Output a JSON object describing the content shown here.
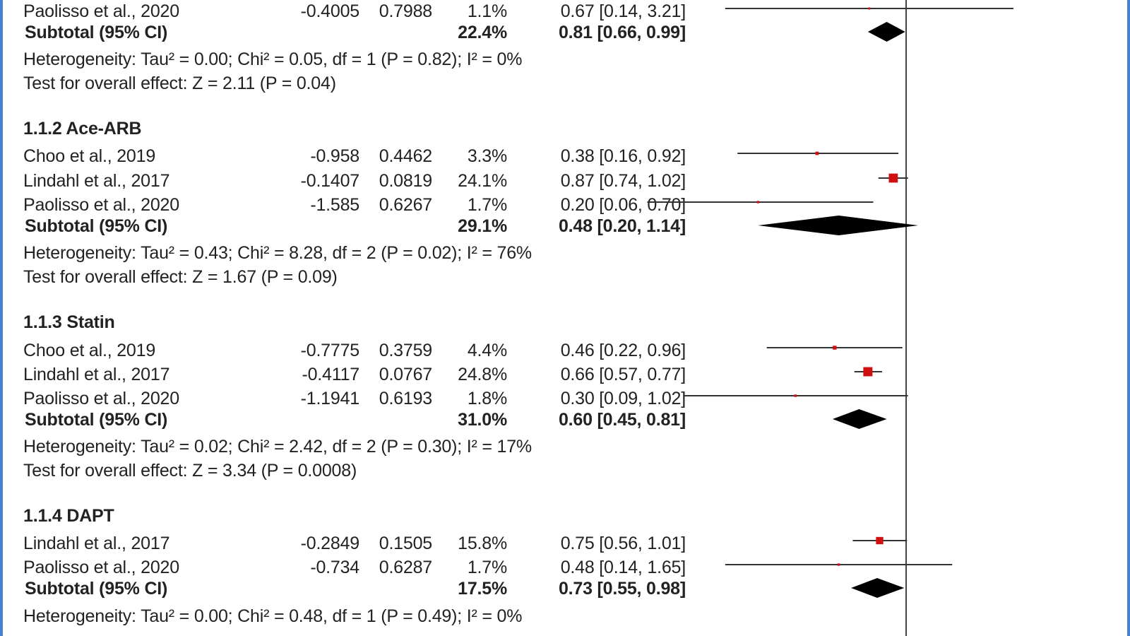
{
  "chart_data": {
    "type": "forest",
    "x_scale": "log",
    "x_reference": 1,
    "columns": [
      "estimate",
      "se",
      "weight",
      "ci_text"
    ],
    "rows": [
      {
        "kind": "study",
        "label": "Paolisso et al., 2020",
        "est": "-0.4005",
        "se": "0.7988",
        "weight": "1.1%",
        "ci_text": "0.67 [0.14, 3.21]",
        "or": 0.67,
        "lo": 0.14,
        "hi": 3.21,
        "w": 1.1
      },
      {
        "kind": "subtotal",
        "label": "Subtotal (95% CI)",
        "weight": "22.4%",
        "ci_text": "0.81 [0.66, 0.99]",
        "or": 0.81,
        "lo": 0.66,
        "hi": 0.99
      },
      {
        "kind": "stat",
        "text": "Heterogeneity: Tau² = 0.00; Chi² = 0.05, df = 1 (P = 0.82); I² = 0%"
      },
      {
        "kind": "stat",
        "text": "Test for overall effect: Z = 2.11 (P = 0.04)"
      },
      {
        "kind": "group",
        "text": "1.1.2 Ace-ARB"
      },
      {
        "kind": "study",
        "label": "Choo et al., 2019",
        "est": "-0.958",
        "se": "0.4462",
        "weight": "3.3%",
        "ci_text": "0.38 [0.16, 0.92]",
        "or": 0.38,
        "lo": 0.16,
        "hi": 0.92,
        "w": 3.3
      },
      {
        "kind": "study",
        "label": "Lindahl et al., 2017",
        "est": "-0.1407",
        "se": "0.0819",
        "weight": "24.1%",
        "ci_text": "0.87 [0.74, 1.02]",
        "or": 0.87,
        "lo": 0.74,
        "hi": 1.02,
        "w": 24.1
      },
      {
        "kind": "study",
        "label": "Paolisso et al., 2020",
        "est": "-1.585",
        "se": "0.6267",
        "weight": "1.7%",
        "ci_text": "0.20 [0.06, 0.70]",
        "or": 0.2,
        "lo": 0.06,
        "hi": 0.7,
        "w": 1.7
      },
      {
        "kind": "subtotal",
        "label": "Subtotal (95% CI)",
        "weight": "29.1%",
        "ci_text": "0.48 [0.20, 1.14]",
        "or": 0.48,
        "lo": 0.2,
        "hi": 1.14
      },
      {
        "kind": "stat",
        "text": "Heterogeneity: Tau² = 0.43; Chi² = 8.28, df = 2 (P = 0.02); I² = 76%"
      },
      {
        "kind": "stat",
        "text": "Test for overall effect: Z = 1.67 (P = 0.09)"
      },
      {
        "kind": "group",
        "text": "1.1.3 Statin"
      },
      {
        "kind": "study",
        "label": "Choo et al., 2019",
        "est": "-0.7775",
        "se": "0.3759",
        "weight": "4.4%",
        "ci_text": "0.46 [0.22, 0.96]",
        "or": 0.46,
        "lo": 0.22,
        "hi": 0.96,
        "w": 4.4
      },
      {
        "kind": "study",
        "label": "Lindahl et al., 2017",
        "est": "-0.4117",
        "se": "0.0767",
        "weight": "24.8%",
        "ci_text": "0.66 [0.57, 0.77]",
        "or": 0.66,
        "lo": 0.57,
        "hi": 0.77,
        "w": 24.8
      },
      {
        "kind": "study",
        "label": "Paolisso et al., 2020",
        "est": "-1.1941",
        "se": "0.6193",
        "weight": "1.8%",
        "ci_text": "0.30 [0.09, 1.02]",
        "or": 0.3,
        "lo": 0.09,
        "hi": 1.02,
        "w": 1.8
      },
      {
        "kind": "subtotal",
        "label": "Subtotal (95% CI)",
        "weight": "31.0%",
        "ci_text": "0.60 [0.45, 0.81]",
        "or": 0.6,
        "lo": 0.45,
        "hi": 0.81
      },
      {
        "kind": "stat",
        "text": "Heterogeneity: Tau² = 0.02; Chi² = 2.42, df = 2 (P = 0.30); I² = 17%"
      },
      {
        "kind": "stat",
        "text": "Test for overall effect: Z = 3.34 (P = 0.0008)"
      },
      {
        "kind": "group",
        "text": "1.1.4 DAPT"
      },
      {
        "kind": "study",
        "label": "Lindahl et al., 2017",
        "est": "-0.2849",
        "se": "0.1505",
        "weight": "15.8%",
        "ci_text": "0.75 [0.56, 1.01]",
        "or": 0.75,
        "lo": 0.56,
        "hi": 1.01,
        "w": 15.8
      },
      {
        "kind": "study",
        "label": "Paolisso et al., 2020",
        "est": "-0.734",
        "se": "0.6287",
        "weight": "1.7%",
        "ci_text": "0.48 [0.14, 1.65]",
        "or": 0.48,
        "lo": 0.14,
        "hi": 1.65,
        "w": 1.7
      },
      {
        "kind": "subtotal",
        "label": "Subtotal (95% CI)",
        "weight": "17.5%",
        "ci_text": "0.73 [0.55, 0.98]",
        "or": 0.73,
        "lo": 0.55,
        "hi": 0.98
      },
      {
        "kind": "stat",
        "text": "Heterogeneity: Tau² = 0.00; Chi² = 0.48, df = 1 (P = 0.49); I² = 0%"
      }
    ]
  },
  "colors": {
    "frame": "#4a7fd0",
    "study_marker": "#d01010",
    "line": "#333333",
    "diamond": "#000000"
  }
}
